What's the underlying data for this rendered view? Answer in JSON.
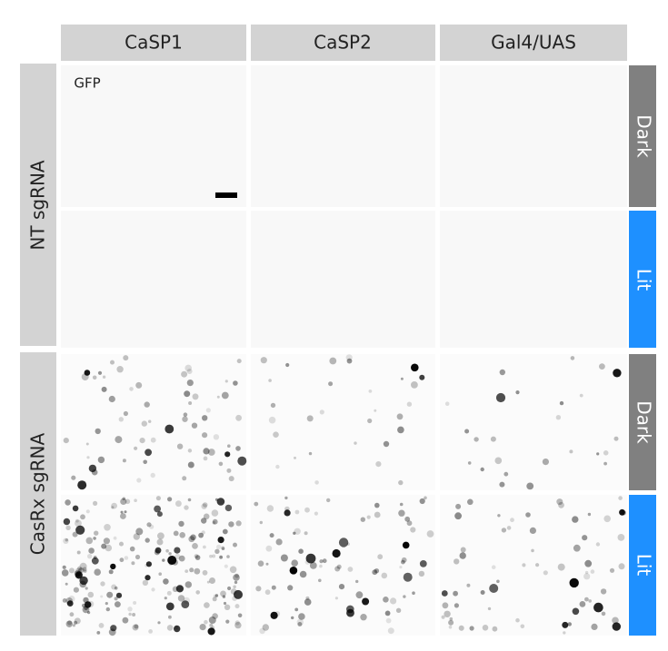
{
  "column_headers": [
    "CaSP1",
    "CaSP2",
    "Gal4/UAS"
  ],
  "row_groups": [
    "NT sgRNA",
    "CasRx sgRNA"
  ],
  "conditions": [
    "Dark",
    "Lit",
    "Dark",
    "Lit"
  ],
  "channel_label": "GFP"
}
